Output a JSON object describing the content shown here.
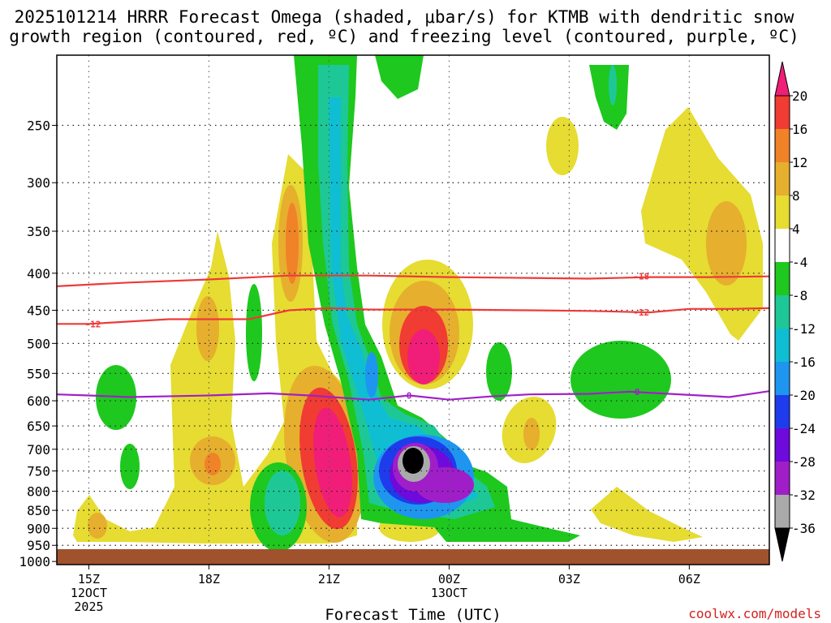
{
  "chart_data": {
    "type": "heatmap",
    "title_line1": "2025101214 HRRR Forecast Omega (shaded, μbar/s) for KTMB with dendritic snow",
    "title_line2": "growth region (contoured, red, ºC) and freezing level (contoured, purple, ºC)",
    "xlabel": "Forecast Time (UTC)",
    "credit": "coolwx.com/models",
    "x_ticks": [
      {
        "h": 15,
        "label": "15Z",
        "sub1": "12OCT",
        "sub2": "2025"
      },
      {
        "h": 18,
        "label": "18Z",
        "sub1": "",
        "sub2": ""
      },
      {
        "h": 21,
        "label": "21Z",
        "sub1": "",
        "sub2": ""
      },
      {
        "h": 24,
        "label": "00Z",
        "sub1": "13OCT",
        "sub2": ""
      },
      {
        "h": 27,
        "label": "03Z",
        "sub1": "",
        "sub2": ""
      },
      {
        "h": 30,
        "label": "06Z",
        "sub1": "",
        "sub2": ""
      }
    ],
    "x_range_hours": [
      14.2,
      32.0
    ],
    "y_axis": "pressure (hPa), log scale",
    "y_range": [
      1010,
      200
    ],
    "y_ticks": [
      {
        "p": 250,
        "label": "250"
      },
      {
        "p": 300,
        "label": "300"
      },
      {
        "p": 350,
        "label": "350"
      },
      {
        "p": 400,
        "label": "400"
      },
      {
        "p": 450,
        "label": "450"
      },
      {
        "p": 500,
        "label": "500"
      },
      {
        "p": 550,
        "label": "550"
      },
      {
        "p": 600,
        "label": "600"
      },
      {
        "p": 650,
        "label": "650"
      },
      {
        "p": 700,
        "label": "700"
      },
      {
        "p": 750,
        "label": "750"
      },
      {
        "p": 800,
        "label": "800"
      },
      {
        "p": 850,
        "label": "850"
      },
      {
        "p": 900,
        "label": "900"
      },
      {
        "p": 950,
        "label": "950"
      },
      {
        "p": 1000,
        "label": "1000"
      }
    ],
    "colorbar": {
      "ticks": [
        "20",
        "16",
        "12",
        "8",
        "4",
        "-4",
        "-8",
        "-12",
        "-16",
        "-20",
        "-24",
        "-28",
        "-32",
        "-36"
      ],
      "colors": [
        "#f01e78",
        "#f03c32",
        "#f08228",
        "#e6af2d",
        "#e6dc32",
        "#ffffff",
        "#1ec81e",
        "#1ec896",
        "#0fbed2",
        "#1e96f0",
        "#1e3ceb",
        "#6e0adc",
        "#a01ec8",
        "#aaaaaa",
        "#000000"
      ]
    },
    "contours": [
      {
        "name": "dgz -18C",
        "label": "-18",
        "color": "#ee3a3a",
        "points": [
          [
            14.2,
            417
          ],
          [
            16,
            412
          ],
          [
            18,
            408
          ],
          [
            20,
            403
          ],
          [
            22,
            403
          ],
          [
            24,
            405
          ],
          [
            26,
            406
          ],
          [
            27.5,
            407
          ],
          [
            29,
            405
          ],
          [
            30.5,
            405
          ],
          [
            32,
            404
          ]
        ]
      },
      {
        "name": "dgz -12C",
        "label": "-12",
        "color": "#ee3a3a",
        "points": [
          [
            14.2,
            470
          ],
          [
            15,
            470
          ],
          [
            17,
            463
          ],
          [
            19,
            463
          ],
          [
            20,
            450
          ],
          [
            21,
            447
          ],
          [
            22,
            449
          ],
          [
            24,
            449
          ],
          [
            26,
            450
          ],
          [
            27.5,
            451
          ],
          [
            29,
            453
          ],
          [
            30,
            448
          ],
          [
            31,
            448
          ],
          [
            32,
            447
          ]
        ]
      },
      {
        "name": "freezing level 0C",
        "label": "0",
        "color": "#a020c8",
        "points": [
          [
            14.2,
            588
          ],
          [
            15,
            590
          ],
          [
            16,
            593
          ],
          [
            18,
            590
          ],
          [
            19.5,
            586
          ],
          [
            20.5,
            590
          ],
          [
            22,
            598
          ],
          [
            23,
            590
          ],
          [
            24,
            598
          ],
          [
            25,
            592
          ],
          [
            26,
            588
          ],
          [
            27.5,
            587
          ],
          [
            28.5,
            583
          ],
          [
            29.5,
            587
          ],
          [
            31,
            593
          ],
          [
            32,
            582
          ]
        ]
      }
    ],
    "contour_label_positions": [
      {
        "label": "-18",
        "h": 28.8,
        "p": 404
      },
      {
        "label": "-12",
        "h": 15.1,
        "p": 470
      },
      {
        "label": "-12",
        "h": 28.8,
        "p": 453
      },
      {
        "label": "0",
        "h": 23.0,
        "p": 590
      },
      {
        "label": "0",
        "h": 28.7,
        "p": 583
      }
    ],
    "omega_features": [
      {
        "region": "15Z low levels",
        "h_range": [
          14.5,
          15.5
        ],
        "p_range": [
          850,
          960
        ],
        "max": 8
      },
      {
        "region": "17-19Z mid levels",
        "h_range": [
          16.8,
          19.5
        ],
        "p_range": [
          360,
          960
        ],
        "max": 12
      },
      {
        "region": "20Z column",
        "h_range": [
          19.5,
          20.7
        ],
        "p_range": [
          280,
          650
        ],
        "max": 12
      },
      {
        "region": "21Z low-mid levels",
        "h_range": [
          20.3,
          21.8
        ],
        "p_range": [
          560,
          960
        ],
        "max": 20
      },
      {
        "region": "23Z mid levels",
        "h_range": [
          22.3,
          24.2
        ],
        "p_range": [
          390,
          620
        ],
        "max": 20
      },
      {
        "region": "22-23Z upward column",
        "h_range": [
          20.5,
          23
        ],
        "p_range": [
          200,
          780
        ],
        "min": -16
      },
      {
        "region": "23Z lower levels",
        "h_range": [
          22.3,
          25.5
        ],
        "p_range": [
          680,
          920
        ],
        "min": -36
      },
      {
        "region": "04Z mid levels",
        "h_range": [
          27.8,
          29.5
        ],
        "p_range": [
          520,
          680
        ],
        "min": -8
      },
      {
        "region": "06Z upper levels",
        "h_range": [
          29.5,
          31.8
        ],
        "p_range": [
          250,
          500
        ],
        "max": 8
      }
    ]
  }
}
